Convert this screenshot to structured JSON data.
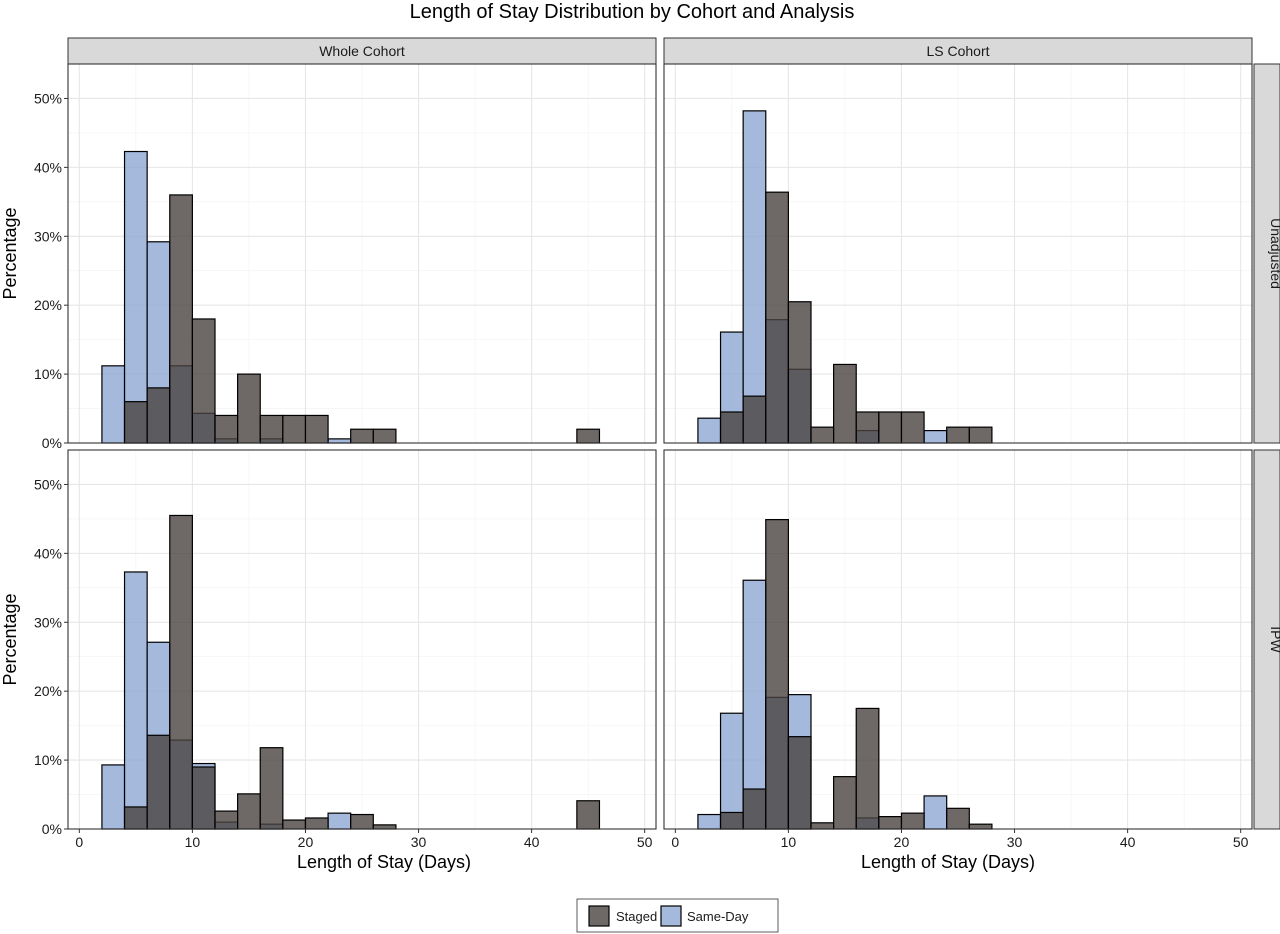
{
  "chart_data": {
    "type": "bar",
    "title": "Length of Stay Distribution by Cohort and Analysis",
    "xlabel": "Length of Stay (Days)",
    "ylabel": "Percentage",
    "xlim": [
      -1,
      51
    ],
    "ylim": [
      0,
      55
    ],
    "xticks": [
      0,
      10,
      20,
      30,
      40,
      50
    ],
    "xtick_labels": [
      "0",
      "10",
      "20",
      "30",
      "40",
      "50"
    ],
    "yticks": [
      0,
      10,
      20,
      30,
      40,
      50
    ],
    "ytick_labels": [
      "0%",
      "10%",
      "20%",
      "30%",
      "40%",
      "50%"
    ],
    "bin_width": 2,
    "grid": true,
    "legend_position": "bottom",
    "columns": [
      "Whole Cohort",
      "LS Cohort"
    ],
    "rows": [
      "Unadjusted",
      "IPW"
    ],
    "series": [
      {
        "name": "Staged",
        "color": "#4a4440"
      },
      {
        "name": "Same-Day",
        "color": "#8ea7d4"
      }
    ],
    "panels": [
      {
        "column": "Whole Cohort",
        "row": "Unadjusted",
        "staged": [
          {
            "x": 5,
            "y": 6
          },
          {
            "x": 7,
            "y": 8
          },
          {
            "x": 9,
            "y": 36
          },
          {
            "x": 11,
            "y": 18
          },
          {
            "x": 13,
            "y": 4
          },
          {
            "x": 15,
            "y": 10
          },
          {
            "x": 17,
            "y": 4
          },
          {
            "x": 19,
            "y": 4
          },
          {
            "x": 21,
            "y": 4
          },
          {
            "x": 25,
            "y": 2
          },
          {
            "x": 27,
            "y": 2
          },
          {
            "x": 45,
            "y": 2
          }
        ],
        "same_day": [
          {
            "x": 3,
            "y": 11.2
          },
          {
            "x": 5,
            "y": 42.3
          },
          {
            "x": 7,
            "y": 29.2
          },
          {
            "x": 9,
            "y": 11.2
          },
          {
            "x": 11,
            "y": 4.3
          },
          {
            "x": 13,
            "y": 0.6
          },
          {
            "x": 17,
            "y": 0.6
          },
          {
            "x": 23,
            "y": 0.6
          }
        ]
      },
      {
        "column": "LS Cohort",
        "row": "Unadjusted",
        "staged": [
          {
            "x": 5,
            "y": 4.5
          },
          {
            "x": 7,
            "y": 6.8
          },
          {
            "x": 9,
            "y": 36.4
          },
          {
            "x": 11,
            "y": 20.5
          },
          {
            "x": 13,
            "y": 2.3
          },
          {
            "x": 15,
            "y": 11.4
          },
          {
            "x": 17,
            "y": 4.5
          },
          {
            "x": 19,
            "y": 4.5
          },
          {
            "x": 21,
            "y": 4.5
          },
          {
            "x": 25,
            "y": 2.3
          },
          {
            "x": 27,
            "y": 2.3
          }
        ],
        "same_day": [
          {
            "x": 3,
            "y": 3.6
          },
          {
            "x": 5,
            "y": 16.1
          },
          {
            "x": 7,
            "y": 48.2
          },
          {
            "x": 9,
            "y": 17.9
          },
          {
            "x": 11,
            "y": 10.7
          },
          {
            "x": 17,
            "y": 1.8
          },
          {
            "x": 23,
            "y": 1.8
          }
        ]
      },
      {
        "column": "Whole Cohort",
        "row": "IPW",
        "staged": [
          {
            "x": 5,
            "y": 3.2
          },
          {
            "x": 7,
            "y": 13.6
          },
          {
            "x": 9,
            "y": 45.5
          },
          {
            "x": 11,
            "y": 9
          },
          {
            "x": 13,
            "y": 2.6
          },
          {
            "x": 15,
            "y": 5.1
          },
          {
            "x": 17,
            "y": 11.8
          },
          {
            "x": 19,
            "y": 1.3
          },
          {
            "x": 21,
            "y": 1.6
          },
          {
            "x": 25,
            "y": 2.1
          },
          {
            "x": 27,
            "y": 0.6
          },
          {
            "x": 45,
            "y": 4.1
          }
        ],
        "same_day": [
          {
            "x": 3,
            "y": 9.3
          },
          {
            "x": 5,
            "y": 37.3
          },
          {
            "x": 7,
            "y": 27.1
          },
          {
            "x": 9,
            "y": 12.9
          },
          {
            "x": 11,
            "y": 9.5
          },
          {
            "x": 13,
            "y": 1
          },
          {
            "x": 17,
            "y": 0.7
          },
          {
            "x": 23,
            "y": 2.3
          }
        ]
      },
      {
        "column": "LS Cohort",
        "row": "IPW",
        "staged": [
          {
            "x": 5,
            "y": 2.4
          },
          {
            "x": 7,
            "y": 5.8
          },
          {
            "x": 9,
            "y": 44.9
          },
          {
            "x": 11,
            "y": 13.4
          },
          {
            "x": 13,
            "y": 0.9
          },
          {
            "x": 15,
            "y": 7.6
          },
          {
            "x": 17,
            "y": 17.5
          },
          {
            "x": 19,
            "y": 1.8
          },
          {
            "x": 21,
            "y": 2.3
          },
          {
            "x": 25,
            "y": 3
          },
          {
            "x": 27,
            "y": 0.7
          }
        ],
        "same_day": [
          {
            "x": 3,
            "y": 2.1
          },
          {
            "x": 5,
            "y": 16.8
          },
          {
            "x": 7,
            "y": 36.1
          },
          {
            "x": 9,
            "y": 19.1
          },
          {
            "x": 11,
            "y": 19.5
          },
          {
            "x": 17,
            "y": 1.6
          },
          {
            "x": 23,
            "y": 4.8
          }
        ]
      }
    ]
  }
}
